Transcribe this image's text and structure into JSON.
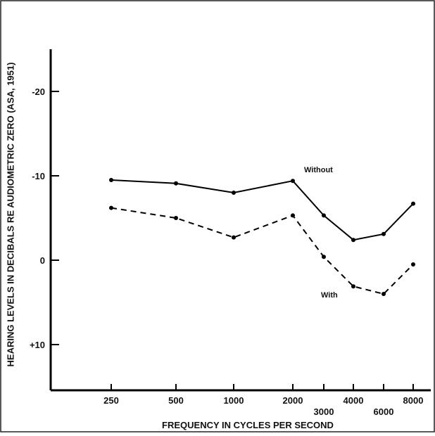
{
  "chart_data": {
    "type": "line",
    "title": "",
    "xlabel": "FREQUENCY IN CYCLES PER SECOND",
    "ylabel": "HEARING LEVELS IN DECIBALS RE AUDIOMETRIC ZERO (ASA, 1951)",
    "x_tick_labels": [
      "250",
      "500",
      "1000",
      "2000",
      "3000",
      "4000",
      "6000",
      "8000"
    ],
    "y_tick_labels": [
      "-20",
      "-10",
      "0",
      "+10"
    ],
    "y_ticks": [
      -20,
      -10,
      0,
      10
    ],
    "ylim": [
      15,
      -25
    ],
    "y_inverted": true,
    "grid": false,
    "series": [
      {
        "name": "Without",
        "style": "solid",
        "values": [
          -9.5,
          -9.1,
          -8.0,
          -9.4,
          -5.3,
          -2.4,
          -3.1,
          -6.7
        ]
      },
      {
        "name": "With",
        "style": "dashed",
        "values": [
          -6.2,
          -5.0,
          -2.7,
          -5.3,
          -0.4,
          3.1,
          4.0,
          0.5
        ]
      }
    ]
  }
}
